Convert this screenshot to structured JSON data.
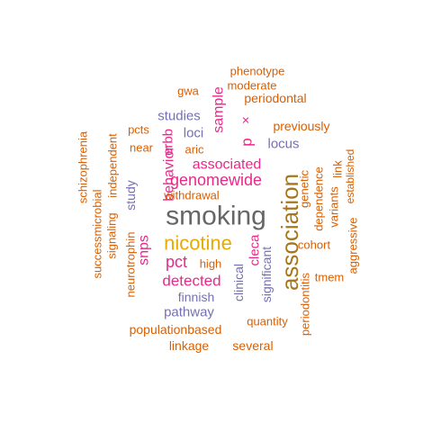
{
  "palette": {
    "orange": "#d95f02",
    "purple": "#7570b3",
    "magenta": "#e7298a",
    "gold": "#e6ab02",
    "olive": "#a6761d",
    "gray": "#666666"
  },
  "words": [
    {
      "text": "smoking",
      "color": "gray"
    },
    {
      "text": "association",
      "color": "olive"
    },
    {
      "text": "nicotine",
      "color": "gold"
    },
    {
      "text": "genomewide",
      "color": "magenta"
    },
    {
      "text": "associated",
      "color": "magenta"
    },
    {
      "text": "pct",
      "color": "magenta"
    },
    {
      "text": "detected",
      "color": "magenta"
    },
    {
      "text": "behavior",
      "color": "magenta"
    },
    {
      "text": "snps",
      "color": "magenta"
    },
    {
      "text": "erbb",
      "color": "magenta"
    },
    {
      "text": "sample",
      "color": "magenta"
    },
    {
      "text": "p",
      "color": "magenta"
    },
    {
      "text": "×",
      "color": "magenta"
    },
    {
      "text": "cleca",
      "color": "magenta"
    },
    {
      "text": "studies",
      "color": "purple"
    },
    {
      "text": "loci",
      "color": "purple"
    },
    {
      "text": "locus",
      "color": "purple"
    },
    {
      "text": "finnish",
      "color": "purple"
    },
    {
      "text": "pathway",
      "color": "purple"
    },
    {
      "text": "study",
      "color": "purple"
    },
    {
      "text": "clinical",
      "color": "purple"
    },
    {
      "text": "significant",
      "color": "purple"
    },
    {
      "text": "phenotype",
      "color": "orange"
    },
    {
      "text": "moderate",
      "color": "orange"
    },
    {
      "text": "gwa",
      "color": "orange"
    },
    {
      "text": "periodontal",
      "color": "orange"
    },
    {
      "text": "previously",
      "color": "orange"
    },
    {
      "text": "pcts",
      "color": "orange"
    },
    {
      "text": "near",
      "color": "orange"
    },
    {
      "text": "aric",
      "color": "orange"
    },
    {
      "text": "withdrawal",
      "color": "orange"
    },
    {
      "text": "high",
      "color": "orange"
    },
    {
      "text": "cohort",
      "color": "orange"
    },
    {
      "text": "tmem",
      "color": "orange"
    },
    {
      "text": "quantity",
      "color": "orange"
    },
    {
      "text": "populationbased",
      "color": "orange"
    },
    {
      "text": "linkage",
      "color": "orange"
    },
    {
      "text": "several",
      "color": "orange"
    },
    {
      "text": "schizophrenia",
      "color": "orange"
    },
    {
      "text": "successmicrobial",
      "color": "orange"
    },
    {
      "text": "signaling",
      "color": "orange"
    },
    {
      "text": "independent",
      "color": "orange"
    },
    {
      "text": "neurotrophin",
      "color": "orange"
    },
    {
      "text": "genetic",
      "color": "orange"
    },
    {
      "text": "dependence",
      "color": "orange"
    },
    {
      "text": "variants",
      "color": "orange"
    },
    {
      "text": "link",
      "color": "orange"
    },
    {
      "text": "established",
      "color": "orange"
    },
    {
      "text": "aggressive",
      "color": "orange"
    },
    {
      "text": "periodontitis",
      "color": "orange"
    }
  ]
}
